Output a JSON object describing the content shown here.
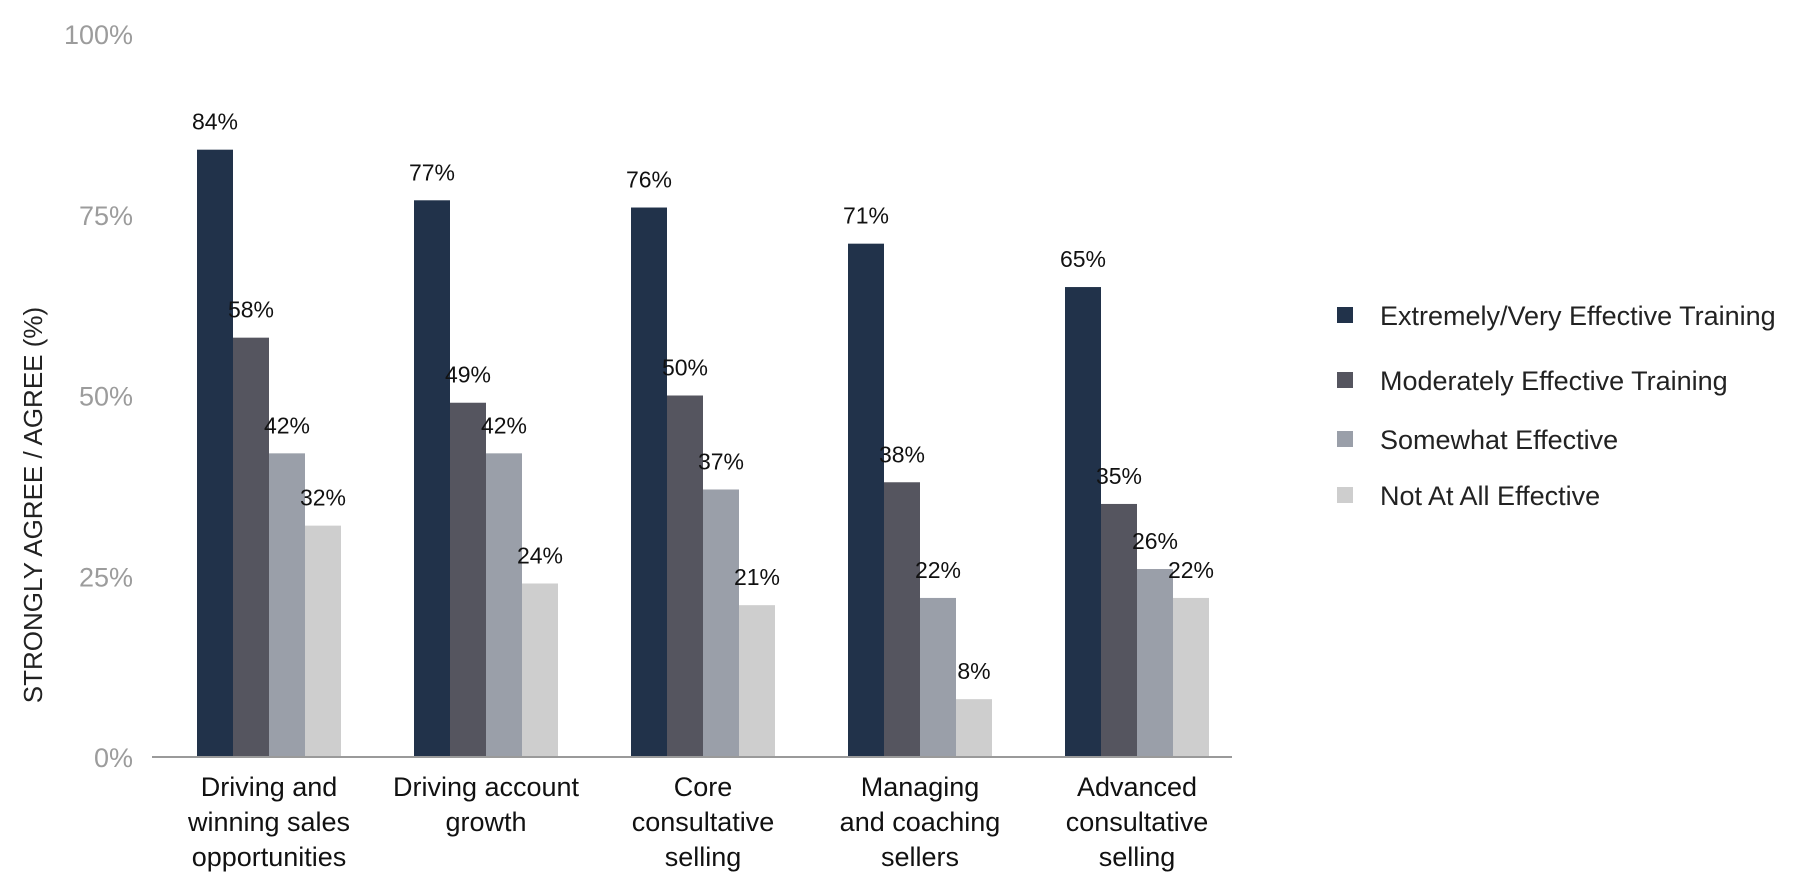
{
  "chart_data": {
    "type": "bar",
    "ylabel": "STRONGLY AGREE / AGREE (%)",
    "xlabel": "",
    "ylim": [
      0,
      100
    ],
    "yticks": [
      {
        "value": 0,
        "label": "0%"
      },
      {
        "value": 25,
        "label": "25%"
      },
      {
        "value": 50,
        "label": "50%"
      },
      {
        "value": 75,
        "label": "75%"
      },
      {
        "value": 100,
        "label": "100%"
      }
    ],
    "grid": false,
    "legend_position": "right",
    "categories": [
      [
        "Driving and",
        "winning sales",
        "opportunities"
      ],
      [
        "Driving account",
        "growth"
      ],
      [
        "Core",
        "consultative",
        "selling"
      ],
      [
        "Managing",
        "and coaching",
        "sellers"
      ],
      [
        "Advanced",
        "consultative",
        "selling"
      ]
    ],
    "series": [
      {
        "name": "Extremely/Very Effective Training",
        "color": "#21324a",
        "values": [
          84,
          77,
          76,
          71,
          65
        ],
        "labels": [
          "84%",
          "77%",
          "76%",
          "71%",
          "65%"
        ]
      },
      {
        "name": "Moderately Effective Training",
        "color": "#55555f",
        "values": [
          58,
          49,
          50,
          38,
          35
        ],
        "labels": [
          "58%",
          "49%",
          "50%",
          "38%",
          "35%"
        ]
      },
      {
        "name": "Somewhat Effective",
        "color": "#9a9fa9",
        "values": [
          42,
          42,
          37,
          22,
          26
        ],
        "labels": [
          "42%",
          "42%",
          "37%",
          "22%",
          "26%"
        ]
      },
      {
        "name": "Not At All Effective",
        "color": "#cecece",
        "values": [
          32,
          24,
          21,
          8,
          22
        ],
        "labels": [
          "32%",
          "24%",
          "21%",
          "8%",
          "22%"
        ]
      }
    ]
  }
}
